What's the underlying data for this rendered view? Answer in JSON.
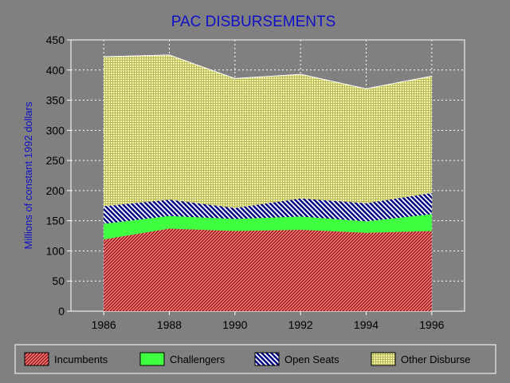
{
  "chart_data": {
    "type": "area",
    "stacked": true,
    "title": "PAC DISBURSEMENTS",
    "xlabel": "",
    "ylabel": "Millions of constant 1992 dollars",
    "xlim": [
      1985,
      1997
    ],
    "ylim": [
      0,
      450
    ],
    "x_ticks": [
      "1986",
      "1988",
      "1990",
      "1992",
      "1994",
      "1996"
    ],
    "y_ticks": [
      "0",
      "50",
      "100",
      "150",
      "200",
      "250",
      "300",
      "350",
      "400",
      "450"
    ],
    "x": [
      1986,
      1988,
      1990,
      1992,
      1994,
      1996
    ],
    "grid": true,
    "legend_position": "bottom",
    "series": [
      {
        "name": "Incumbents",
        "color": "#b02020",
        "pattern": "diagonal-hatch",
        "values": [
          119,
          137,
          133,
          135,
          130,
          133
        ]
      },
      {
        "name": "Challengers",
        "color": "#40ff40",
        "pattern": "solid",
        "values": [
          26,
          21,
          20,
          22,
          19,
          28
        ]
      },
      {
        "name": "Open Seats",
        "color": "#000080",
        "pattern": "diagonal-hatch",
        "values": [
          29,
          27,
          18,
          30,
          30,
          35
        ]
      },
      {
        "name": "Other Disburse",
        "color": "#f0f080",
        "pattern": "dotted-grid",
        "values": [
          248,
          240,
          215,
          206,
          190,
          194
        ]
      }
    ]
  }
}
